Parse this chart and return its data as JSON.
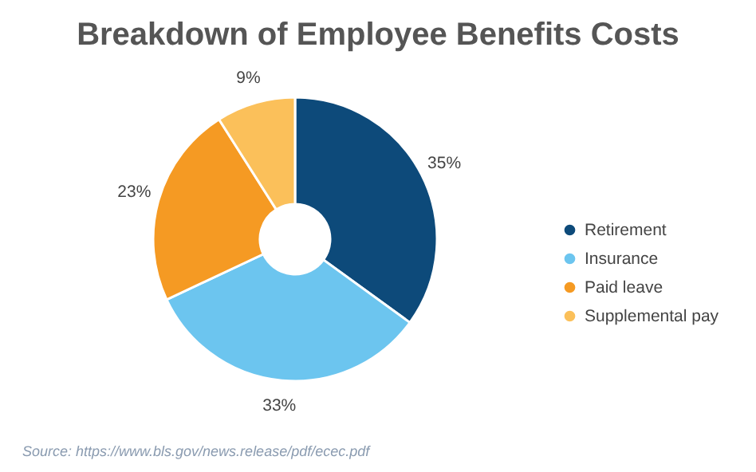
{
  "chart_data": {
    "type": "donut",
    "title": "Breakdown of Employee Benefits Costs",
    "categories": [
      "Retirement",
      "Insurance",
      "Paid leave",
      "Supplemental pay"
    ],
    "values": [
      35,
      33,
      23,
      9
    ],
    "value_labels": [
      "35%",
      "33%",
      "23%",
      "9%"
    ],
    "colors": [
      "#0d4a7a",
      "#6cc5ef",
      "#f59a23",
      "#fbc05a"
    ],
    "legend": "right",
    "annotations": [
      "Source: https://www.bls.gov/news.release/pdf/ecec.pdf"
    ]
  }
}
